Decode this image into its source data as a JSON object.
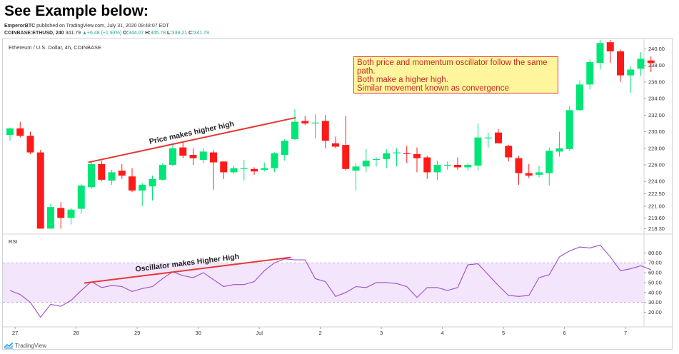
{
  "heading": "See Example below:",
  "publish": {
    "author": "EmperorBTC",
    "text": " published on TradingView.com, July 31, 2020 09:48:07 EDT"
  },
  "ticker": {
    "symbol": "COINBASE:ETHUSD, 240",
    "last": "341.79",
    "change": "+6.48 (+1.93%)",
    "o_label": "O:",
    "o": "344.07",
    "h_label": "H:",
    "h": "345.78",
    "l_label": "L:",
    "l": "339.21",
    "c_label": "C:",
    "c": "341.79"
  },
  "price_pane_title": "Ethereum / U.S. Dollar, 4h, COINBASE",
  "rsi_pane_title": "RSI",
  "annotation_box": {
    "lines": [
      "Both price and momentum oscillator follow the same",
      "path.",
      "Both make a higher high.",
      "Similar movement known as convergence"
    ]
  },
  "footer": {
    "brand": "TradingView"
  },
  "colors": {
    "up": "#00e676",
    "down": "#ff1a1a",
    "trendline": "#e53935",
    "rsi_line": "#9c4dcc",
    "rsi_band": "#f3e5fb",
    "annotation_bg": "#fff59d",
    "annotation_text": "#c62828"
  },
  "chart_data": [
    {
      "type": "candlestick",
      "title": "Ethereum / U.S. Dollar, 4h, COINBASE",
      "ylim": [
        217.9,
        240.9
      ],
      "y_ticks": [
        240.0,
        238.0,
        236.0,
        234.0,
        232.0,
        230.0,
        228.0,
        226.0,
        224.0,
        222.5,
        221.0,
        219.6,
        218.3
      ],
      "y_tick_labels": [
        "240.00",
        "238.00",
        "236.00",
        "234.00",
        "232.00",
        "230.00",
        "228.00",
        "226.00",
        "224.00",
        "222.50",
        "221.00",
        "219.60",
        "218.30"
      ],
      "x_tick_labels": [
        "27",
        "28",
        "29",
        "30",
        "Jul",
        "2",
        "3",
        "4",
        "5",
        "6",
        "7"
      ],
      "x_tick_index": [
        0.5,
        6.5,
        12.5,
        18.5,
        24.5,
        30.5,
        36.5,
        42.5,
        48.5,
        54.5,
        60.5
      ],
      "candles": [
        {
          "o": 229.6,
          "h": 230.5,
          "l": 228.9,
          "c": 230.4
        },
        {
          "o": 230.4,
          "h": 231.2,
          "l": 229.3,
          "c": 229.5
        },
        {
          "o": 229.5,
          "h": 230.0,
          "l": 227.3,
          "c": 227.5
        },
        {
          "o": 227.5,
          "h": 227.8,
          "l": 218.3,
          "c": 218.3
        },
        {
          "o": 218.3,
          "h": 221.3,
          "l": 218.3,
          "c": 220.9
        },
        {
          "o": 220.8,
          "h": 221.5,
          "l": 218.3,
          "c": 219.6
        },
        {
          "o": 219.6,
          "h": 220.8,
          "l": 218.8,
          "c": 220.6
        },
        {
          "o": 220.7,
          "h": 223.7,
          "l": 220.1,
          "c": 223.5
        },
        {
          "o": 223.3,
          "h": 226.3,
          "l": 223.1,
          "c": 226.1
        },
        {
          "o": 226.1,
          "h": 226.5,
          "l": 224.0,
          "c": 224.2
        },
        {
          "o": 224.1,
          "h": 225.4,
          "l": 223.6,
          "c": 225.1
        },
        {
          "o": 225.3,
          "h": 226.1,
          "l": 224.3,
          "c": 224.7
        },
        {
          "o": 224.6,
          "h": 225.6,
          "l": 222.7,
          "c": 222.9
        },
        {
          "o": 222.9,
          "h": 223.8,
          "l": 221.0,
          "c": 223.6
        },
        {
          "o": 223.4,
          "h": 224.7,
          "l": 221.7,
          "c": 224.3
        },
        {
          "o": 224.2,
          "h": 226.2,
          "l": 224.1,
          "c": 226.0
        },
        {
          "o": 226.0,
          "h": 228.6,
          "l": 225.8,
          "c": 228.0
        },
        {
          "o": 228.1,
          "h": 228.8,
          "l": 226.8,
          "c": 227.1
        },
        {
          "o": 227.2,
          "h": 228.0,
          "l": 226.0,
          "c": 226.8
        },
        {
          "o": 226.6,
          "h": 228.0,
          "l": 226.2,
          "c": 227.6
        },
        {
          "o": 227.5,
          "h": 227.8,
          "l": 223.0,
          "c": 226.3
        },
        {
          "o": 226.4,
          "h": 226.4,
          "l": 224.3,
          "c": 225.1
        },
        {
          "o": 225.1,
          "h": 225.9,
          "l": 224.9,
          "c": 225.6
        },
        {
          "o": 225.6,
          "h": 226.6,
          "l": 224.1,
          "c": 225.6
        },
        {
          "o": 225.5,
          "h": 225.7,
          "l": 224.8,
          "c": 225.2
        },
        {
          "o": 225.4,
          "h": 226.3,
          "l": 225.2,
          "c": 225.6
        },
        {
          "o": 225.6,
          "h": 227.5,
          "l": 225.1,
          "c": 227.4
        },
        {
          "o": 227.2,
          "h": 229.1,
          "l": 226.5,
          "c": 228.9
        },
        {
          "o": 229.1,
          "h": 232.7,
          "l": 229.0,
          "c": 231.2
        },
        {
          "o": 231.3,
          "h": 231.9,
          "l": 230.8,
          "c": 231.0
        },
        {
          "o": 231.1,
          "h": 232.1,
          "l": 229.2,
          "c": 231.1
        },
        {
          "o": 231.3,
          "h": 232.0,
          "l": 228.0,
          "c": 228.9
        },
        {
          "o": 228.6,
          "h": 229.4,
          "l": 228.0,
          "c": 228.2
        },
        {
          "o": 228.4,
          "h": 231.9,
          "l": 225.3,
          "c": 225.5
        },
        {
          "o": 225.3,
          "h": 226.2,
          "l": 222.9,
          "c": 225.8
        },
        {
          "o": 225.8,
          "h": 227.9,
          "l": 225.1,
          "c": 226.5
        },
        {
          "o": 226.6,
          "h": 226.9,
          "l": 225.8,
          "c": 226.7
        },
        {
          "o": 226.7,
          "h": 227.9,
          "l": 225.6,
          "c": 227.4
        },
        {
          "o": 227.4,
          "h": 228.0,
          "l": 225.8,
          "c": 227.5
        },
        {
          "o": 227.4,
          "h": 228.3,
          "l": 226.2,
          "c": 227.3
        },
        {
          "o": 227.3,
          "h": 228.1,
          "l": 225.1,
          "c": 226.8
        },
        {
          "o": 226.9,
          "h": 227.1,
          "l": 224.3,
          "c": 225.1
        },
        {
          "o": 225.1,
          "h": 226.5,
          "l": 224.2,
          "c": 226.0
        },
        {
          "o": 226.0,
          "h": 226.4,
          "l": 225.4,
          "c": 226.0
        },
        {
          "o": 226.0,
          "h": 226.9,
          "l": 225.4,
          "c": 225.7
        },
        {
          "o": 225.7,
          "h": 226.2,
          "l": 225.3,
          "c": 226.0
        },
        {
          "o": 225.9,
          "h": 231.0,
          "l": 225.3,
          "c": 229.3
        },
        {
          "o": 229.2,
          "h": 229.9,
          "l": 228.1,
          "c": 229.3
        },
        {
          "o": 229.9,
          "h": 230.3,
          "l": 228.6,
          "c": 228.6
        },
        {
          "o": 228.3,
          "h": 228.4,
          "l": 226.4,
          "c": 226.9
        },
        {
          "o": 226.8,
          "h": 227.1,
          "l": 223.6,
          "c": 225.0
        },
        {
          "o": 225.0,
          "h": 226.1,
          "l": 224.4,
          "c": 224.7
        },
        {
          "o": 224.8,
          "h": 225.9,
          "l": 224.5,
          "c": 225.1
        },
        {
          "o": 225.0,
          "h": 228.1,
          "l": 223.5,
          "c": 227.7
        },
        {
          "o": 227.6,
          "h": 230.0,
          "l": 227.0,
          "c": 228.0
        },
        {
          "o": 227.9,
          "h": 233.1,
          "l": 227.7,
          "c": 232.6
        },
        {
          "o": 232.6,
          "h": 236.2,
          "l": 232.5,
          "c": 235.7
        },
        {
          "o": 235.7,
          "h": 238.7,
          "l": 235.1,
          "c": 238.4
        },
        {
          "o": 238.3,
          "h": 241.3,
          "l": 237.5,
          "c": 240.7
        },
        {
          "o": 240.8,
          "h": 241.4,
          "l": 238.3,
          "c": 239.7
        },
        {
          "o": 239.7,
          "h": 239.9,
          "l": 236.0,
          "c": 236.8
        },
        {
          "o": 236.8,
          "h": 237.9,
          "l": 234.7,
          "c": 237.5
        },
        {
          "o": 237.6,
          "h": 239.6,
          "l": 236.7,
          "c": 238.8
        },
        {
          "o": 238.6,
          "h": 239.1,
          "l": 237.2,
          "c": 238.3
        }
      ],
      "annotations": [
        {
          "text": "Price makes higher high",
          "from": {
            "x_index": 7.7,
            "y": 226.3
          },
          "to": {
            "x_index": 28.1,
            "y": 231.7
          }
        }
      ]
    },
    {
      "type": "line",
      "title": "RSI",
      "ylim": [
        11,
        87.5
      ],
      "y_ticks": [
        80,
        70,
        60,
        50,
        40,
        30,
        20
      ],
      "y_tick_labels": [
        "80.00",
        "70.00",
        "60.00",
        "50.00",
        "40.00",
        "30.00",
        "20.00"
      ],
      "bands": [
        30,
        70
      ],
      "series": [
        {
          "values": [
            42,
            38,
            30,
            15,
            28,
            26,
            32,
            42,
            51,
            45,
            47,
            46,
            41,
            44,
            46,
            54,
            61,
            57,
            55,
            60,
            53,
            46,
            48,
            48,
            51,
            62,
            70,
            74,
            73,
            73,
            54,
            51,
            36,
            40,
            46,
            45,
            50,
            50,
            49,
            46,
            35,
            45,
            45,
            42,
            45,
            68,
            69,
            58,
            47,
            37,
            36,
            37,
            55,
            58,
            76,
            82,
            86,
            85,
            88,
            76,
            62,
            64,
            67,
            63
          ]
        }
      ],
      "annotations": [
        {
          "text": "Oscillator makes Higher High",
          "from": {
            "x_index": 7.3,
            "y": 49.5
          },
          "to": {
            "x_index": 27.6,
            "y": 75.5
          }
        }
      ]
    }
  ]
}
